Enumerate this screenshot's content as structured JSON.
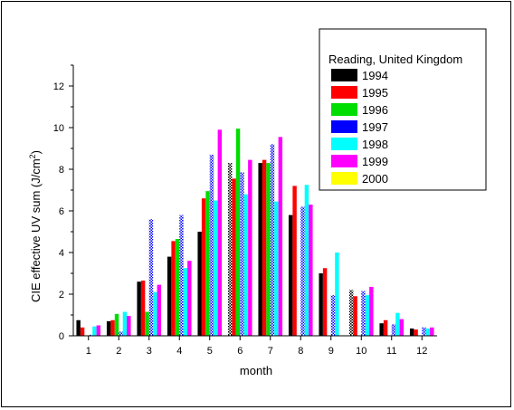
{
  "chart_data": {
    "type": "bar",
    "title": "",
    "xlabel": "month",
    "ylabel": "CIE effective UV sum (J/cm",
    "ylabel_sup": "2",
    "ylabel_end": ")",
    "ylim": [
      0,
      13
    ],
    "yticks": [
      0,
      2,
      4,
      6,
      8,
      10,
      12
    ],
    "categories": [
      "1",
      "2",
      "3",
      "4",
      "5",
      "6",
      "7",
      "8",
      "9",
      "10",
      "11",
      "12"
    ],
    "legend_title": "Reading, United Kingdom",
    "legend_position": "top-right",
    "series": [
      {
        "name": "1994",
        "color": "#000000",
        "pattern": "solid",
        "values": [
          0.75,
          0.7,
          2.6,
          3.8,
          5.0,
          8.3,
          8.3,
          5.8,
          3.0,
          2.2,
          0.6,
          0.35
        ]
      },
      {
        "name": "1995",
        "color": "#ff0000",
        "pattern": "solid",
        "values": [
          0.4,
          0.75,
          2.65,
          4.55,
          6.6,
          7.55,
          8.45,
          7.2,
          3.25,
          1.9,
          0.75,
          0.3
        ]
      },
      {
        "name": "1996",
        "color": "#00dd00",
        "pattern": "solid",
        "values": [
          0,
          1.05,
          1.15,
          4.65,
          6.95,
          9.95,
          8.3,
          0,
          0,
          0,
          0,
          0
        ]
      },
      {
        "name": "1997",
        "color": "#0000ff",
        "pattern": "hatched",
        "values": [
          0.05,
          0.2,
          5.6,
          5.8,
          8.7,
          7.85,
          9.2,
          6.2,
          1.95,
          2.15,
          0.55,
          0.4
        ]
      },
      {
        "name": "1998",
        "color": "#00ffff",
        "pattern": "solid",
        "values": [
          0.45,
          1.15,
          2.1,
          3.25,
          6.5,
          6.8,
          6.45,
          7.25,
          4.0,
          1.95,
          1.1,
          0.35
        ]
      },
      {
        "name": "1999",
        "color": "#ff00ff",
        "pattern": "solid",
        "values": [
          0.5,
          0.95,
          2.45,
          3.6,
          9.9,
          8.45,
          9.55,
          6.3,
          0,
          2.35,
          0.8,
          0.4
        ]
      },
      {
        "name": "2000",
        "color": "#ffff00",
        "pattern": "solid",
        "values": [
          0,
          0,
          0,
          0,
          0,
          0,
          0,
          0,
          0,
          0,
          0,
          0
        ]
      }
    ],
    "grid": false
  }
}
